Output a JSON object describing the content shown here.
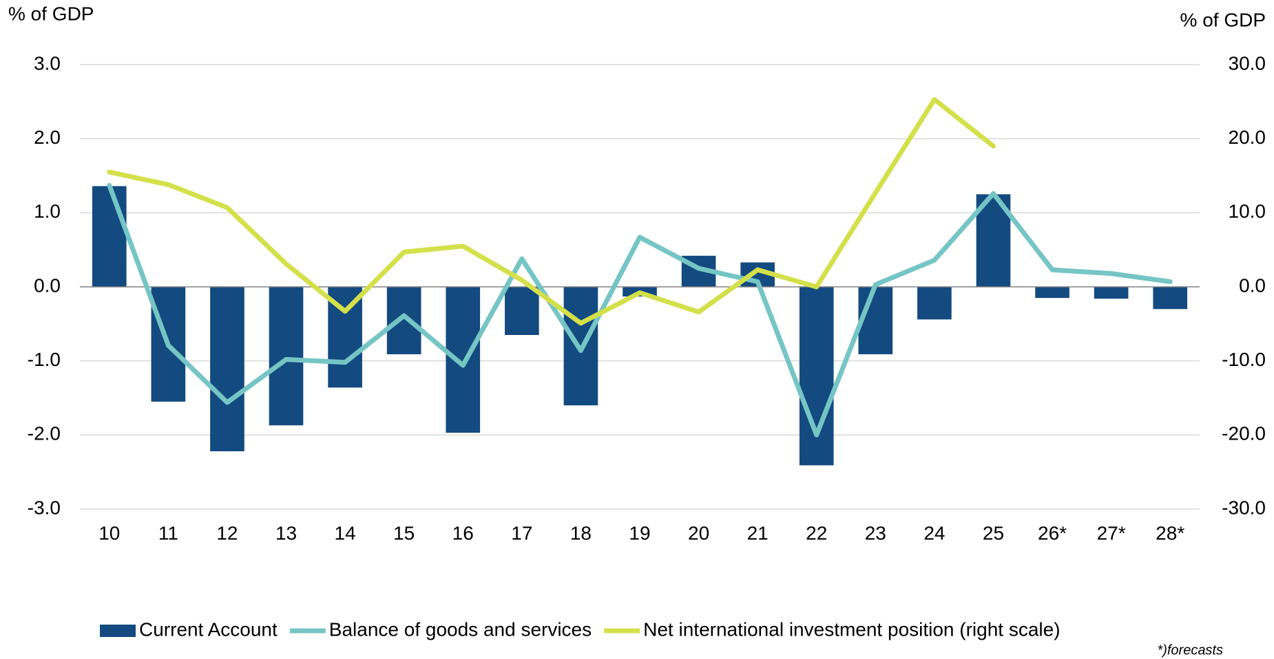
{
  "chart_data": {
    "type": "bar_line",
    "y_label": "% of GDP",
    "y2_label": "% of GDP",
    "note": "*)forecasts",
    "categories": [
      "10",
      "11",
      "12",
      "13",
      "14",
      "15",
      "16",
      "17",
      "18",
      "19",
      "20",
      "21",
      "22",
      "23",
      "24",
      "25",
      "26*",
      "27*",
      "28*"
    ],
    "series": [
      {
        "name": "Current Account",
        "type": "bar",
        "color": "#134a80",
        "values": [
          1.36,
          -1.55,
          -2.22,
          -1.87,
          -1.36,
          -0.91,
          -1.97,
          -0.65,
          -1.6,
          -0.13,
          0.42,
          0.33,
          -2.41,
          -0.91,
          -0.44,
          1.25,
          -0.15,
          -0.16,
          -0.3
        ]
      },
      {
        "name": "Balance of goods and services",
        "type": "line",
        "color": "#76c5c5",
        "values": [
          1.37,
          -0.79,
          -1.56,
          -0.98,
          -1.02,
          -0.39,
          -1.06,
          0.38,
          -0.86,
          0.67,
          0.25,
          0.07,
          -2.0,
          0.03,
          0.36,
          1.26,
          0.23,
          0.18,
          0.07
        ]
      },
      {
        "name": "Net international investment position (right scale)",
        "type": "line",
        "axis": "y2",
        "color": "#d4e04a",
        "values": [
          15.5,
          13.8,
          10.7,
          3.1,
          -3.3,
          4.7,
          5.5,
          0.9,
          -4.9,
          -0.8,
          -3.4,
          2.3,
          0.0,
          12.7,
          25.3,
          19.0,
          null,
          null,
          null
        ]
      }
    ],
    "ylim": [
      -3,
      3
    ],
    "yticks": [
      {
        "value": 3,
        "label": "3.0"
      },
      {
        "value": 2,
        "label": "2.0"
      },
      {
        "value": 1,
        "label": "1.0"
      },
      {
        "value": 0,
        "label": "0.0"
      },
      {
        "value": -1,
        "label": "-1.0"
      },
      {
        "value": -2,
        "label": "-2.0"
      },
      {
        "value": -3,
        "label": "-3.0"
      }
    ],
    "y2lim": [
      -30,
      30
    ],
    "y2ticks": [
      {
        "value": 30,
        "label": "30.0"
      },
      {
        "value": 20,
        "label": "20.0"
      },
      {
        "value": 10,
        "label": "10.0"
      },
      {
        "value": 0,
        "label": "0.0"
      },
      {
        "value": -10,
        "label": "-10.0"
      },
      {
        "value": -20,
        "label": "-20.0"
      },
      {
        "value": -30,
        "label": "-30.0"
      }
    ],
    "grid": true,
    "legend": "bottom"
  }
}
